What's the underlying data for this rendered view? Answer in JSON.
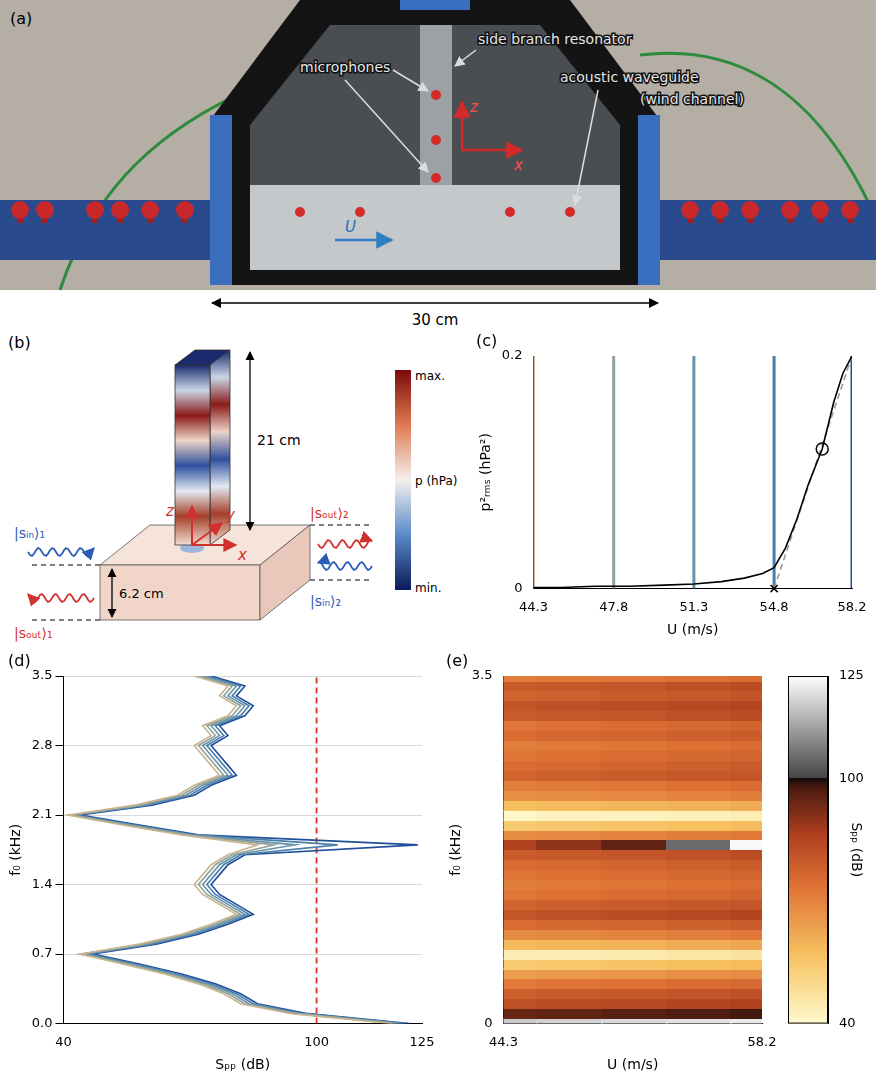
{
  "figure_a": {
    "letter": "(a)",
    "texts": {
      "microphones": "microphones",
      "resonator": "side branch resonator",
      "waveguide": "acoustic waveguide",
      "channel": "(wind channel)",
      "flow": "U",
      "axis_z": "z",
      "axis_x": "x"
    },
    "scale_bar": "30 cm"
  },
  "figure_b": {
    "letter": "(b)",
    "length": "21 cm",
    "width": "6.2 cm",
    "ports": {
      "in_1": "|sᵢₙ⟩₁",
      "out_1": "|sₒᵤₜ⟩₁",
      "out_2": "|sₒᵤₜ⟩₂",
      "in_2": "|sᵢₙ⟩₂"
    },
    "axes": {
      "z": "z",
      "y": "y",
      "x": "x"
    },
    "colorbar": {
      "label": "p (hPa)",
      "top": "max.",
      "bottom": "min."
    }
  },
  "chart_data": [
    {
      "panel": "(c)",
      "type": "line",
      "x_label": "U (m/s)",
      "y_label": "p²ᵣₘₛ (hPa²)",
      "xlim": [
        44.3,
        58.2
      ],
      "xticks": [
        44.3,
        47.8,
        51.3,
        54.8,
        58.2
      ],
      "ylim": [
        0,
        0.2
      ],
      "yticks": [
        0,
        0.2
      ],
      "grid": false,
      "vlines": [
        {
          "value": 44.3,
          "color": "#c9b48f"
        },
        {
          "value": 47.8,
          "color": "#8fa39a"
        },
        {
          "value": 51.3,
          "color": "#6a93ab"
        },
        {
          "value": 54.8,
          "color": "#4a7eaa"
        },
        {
          "value": 58.2,
          "color": "#1f4e9c"
        }
      ],
      "series": [
        {
          "color": "#000000",
          "line_style": "solid",
          "x": [
            44.3,
            45.5,
            47,
            48.5,
            50,
            51.3,
            52.5,
            53.5,
            54.3,
            54.8,
            55.3,
            55.8,
            56.3,
            56.9,
            57.4,
            57.8,
            58.2
          ],
          "values": [
            0.001,
            0.001,
            0.002,
            0.002,
            0.003,
            0.004,
            0.006,
            0.009,
            0.013,
            0.018,
            0.035,
            0.06,
            0.09,
            0.12,
            0.16,
            0.185,
            0.2
          ]
        },
        {
          "color": "#9a9a9a",
          "line_style": "dashed",
          "x": [
            54.8,
            58.2
          ],
          "values": [
            0,
            0.2
          ]
        }
      ],
      "markers": [
        {
          "x": 54.8,
          "y": 0,
          "marker": "cross"
        },
        {
          "x": 56.9,
          "y": 0.12,
          "marker": "circle"
        }
      ]
    },
    {
      "panel": "(d)",
      "type": "line",
      "orientation": "horizontal",
      "x_label": "Sₚₚ (dB)",
      "y_label": "f₀ (kHz)",
      "xlim": [
        40,
        125
      ],
      "xticks": [
        40,
        100,
        125
      ],
      "ylim": [
        0,
        3.5
      ],
      "yticks": [
        {
          "value": 0,
          "label": "0.0"
        },
        0.7,
        1.4,
        2.1,
        2.8,
        3.5
      ],
      "grid": "y",
      "y": [
        0,
        0.1,
        0.2,
        0.3,
        0.4,
        0.5,
        0.6,
        0.7,
        0.8,
        0.9,
        1,
        1.1,
        1.2,
        1.3,
        1.4,
        1.5,
        1.6,
        1.7,
        1.8,
        1.9,
        2,
        2.1,
        2.2,
        2.3,
        2.4,
        2.5,
        2.6,
        2.7,
        2.8,
        2.9,
        3,
        3.1,
        3.2,
        3.3,
        3.4,
        3.5
      ],
      "series": [
        {
          "color": "#c9b48f",
          "values": [
            118,
            94,
            82,
            78,
            72,
            64,
            54,
            44,
            58,
            68,
            75,
            81,
            77,
            73,
            71,
            73,
            75,
            79,
            86,
            68,
            54,
            41,
            57,
            67,
            71,
            77,
            75,
            73,
            71,
            75,
            73,
            79,
            81,
            77,
            79,
            71
          ]
        },
        {
          "color": "#8fa39a",
          "values": [
            119,
            95,
            83,
            79,
            73,
            65,
            55,
            44,
            59,
            69,
            76,
            82,
            78,
            74,
            72,
            74,
            76,
            80,
            90,
            69,
            55,
            42,
            58,
            68,
            72,
            78,
            76,
            74,
            72,
            76,
            74,
            80,
            82,
            78,
            80,
            72
          ]
        },
        {
          "color": "#6a93ab",
          "values": [
            120,
            96,
            84,
            80,
            74,
            66,
            56,
            45,
            60,
            70,
            77,
            83,
            79,
            75,
            73,
            75,
            77,
            81,
            95,
            70,
            56,
            42,
            59,
            69,
            73,
            79,
            77,
            75,
            73,
            77,
            75,
            81,
            83,
            79,
            81,
            73
          ]
        },
        {
          "color": "#4a7eaa",
          "values": [
            121,
            97,
            85,
            81,
            75,
            67,
            57,
            46,
            61,
            71,
            78,
            84,
            80,
            76,
            74,
            76,
            78,
            82,
            105,
            71,
            57,
            43,
            60,
            70,
            74,
            80,
            78,
            76,
            74,
            78,
            76,
            82,
            84,
            80,
            82,
            74
          ]
        },
        {
          "color": "#1f4e9c",
          "values": [
            122,
            98,
            86,
            82,
            76,
            68,
            58,
            47,
            62,
            72,
            79,
            85,
            81,
            77,
            75,
            77,
            79,
            83,
            124,
            72,
            58,
            44,
            61,
            71,
            75,
            81,
            79,
            77,
            75,
            79,
            77,
            83,
            85,
            81,
            83,
            75
          ]
        }
      ],
      "reference_x": {
        "value": 100,
        "color": "#e0302a",
        "line_style": "dashed"
      }
    },
    {
      "panel": "(e)",
      "type": "heatmap",
      "x_label": "U (m/s)",
      "y_label": "f₀ (kHz)",
      "xlim": [
        44.3,
        58.2
      ],
      "xticks": [
        44.3,
        58.2
      ],
      "ylim": [
        0,
        3.5
      ],
      "yticks": [
        0,
        3.5
      ],
      "grid": false,
      "x": [
        44.3,
        47.8,
        51.3,
        54.8,
        58.2
      ],
      "y": [
        0,
        0.1,
        0.2,
        0.3,
        0.4,
        0.5,
        0.6,
        0.7,
        0.8,
        0.9,
        1,
        1.1,
        1.2,
        1.3,
        1.4,
        1.5,
        1.6,
        1.7,
        1.8,
        1.9,
        2,
        2.1,
        2.2,
        2.3,
        2.4,
        2.5,
        2.6,
        2.7,
        2.8,
        2.9,
        3,
        3.1,
        3.2,
        3.3,
        3.4,
        3.5
      ],
      "cells": [
        [
          118,
          94,
          82,
          78,
          72,
          64,
          54,
          44,
          58,
          68,
          75,
          81,
          77,
          73,
          71,
          73,
          75,
          79,
          86,
          68,
          54,
          41,
          57,
          67,
          71,
          77,
          75,
          73,
          71,
          75,
          73,
          79,
          81,
          77,
          79,
          71
        ],
        [
          119,
          95,
          83,
          79,
          73,
          65,
          55,
          44,
          59,
          69,
          76,
          82,
          78,
          74,
          72,
          74,
          76,
          80,
          90,
          69,
          55,
          42,
          58,
          68,
          72,
          78,
          76,
          74,
          72,
          76,
          74,
          80,
          82,
          78,
          80,
          72
        ],
        [
          120,
          96,
          84,
          80,
          74,
          66,
          56,
          45,
          60,
          70,
          77,
          83,
          79,
          75,
          73,
          75,
          77,
          81,
          95,
          70,
          56,
          42,
          59,
          69,
          73,
          79,
          77,
          75,
          73,
          77,
          75,
          81,
          83,
          79,
          81,
          73
        ],
        [
          121,
          97,
          85,
          81,
          75,
          67,
          57,
          46,
          61,
          71,
          78,
          84,
          80,
          76,
          74,
          76,
          78,
          82,
          105,
          71,
          57,
          43,
          60,
          70,
          74,
          80,
          78,
          76,
          74,
          78,
          76,
          82,
          84,
          80,
          82,
          74
        ],
        [
          122,
          98,
          86,
          82,
          76,
          68,
          58,
          47,
          62,
          72,
          79,
          85,
          81,
          77,
          75,
          77,
          79,
          83,
          124,
          72,
          58,
          44,
          61,
          71,
          75,
          81,
          79,
          77,
          75,
          79,
          77,
          83,
          85,
          81,
          83,
          75
        ]
      ],
      "colorbar": {
        "label": "Sₚₚ (dB)",
        "range": [
          40,
          125
        ],
        "ticks": [
          40,
          100,
          125
        ]
      }
    }
  ]
}
